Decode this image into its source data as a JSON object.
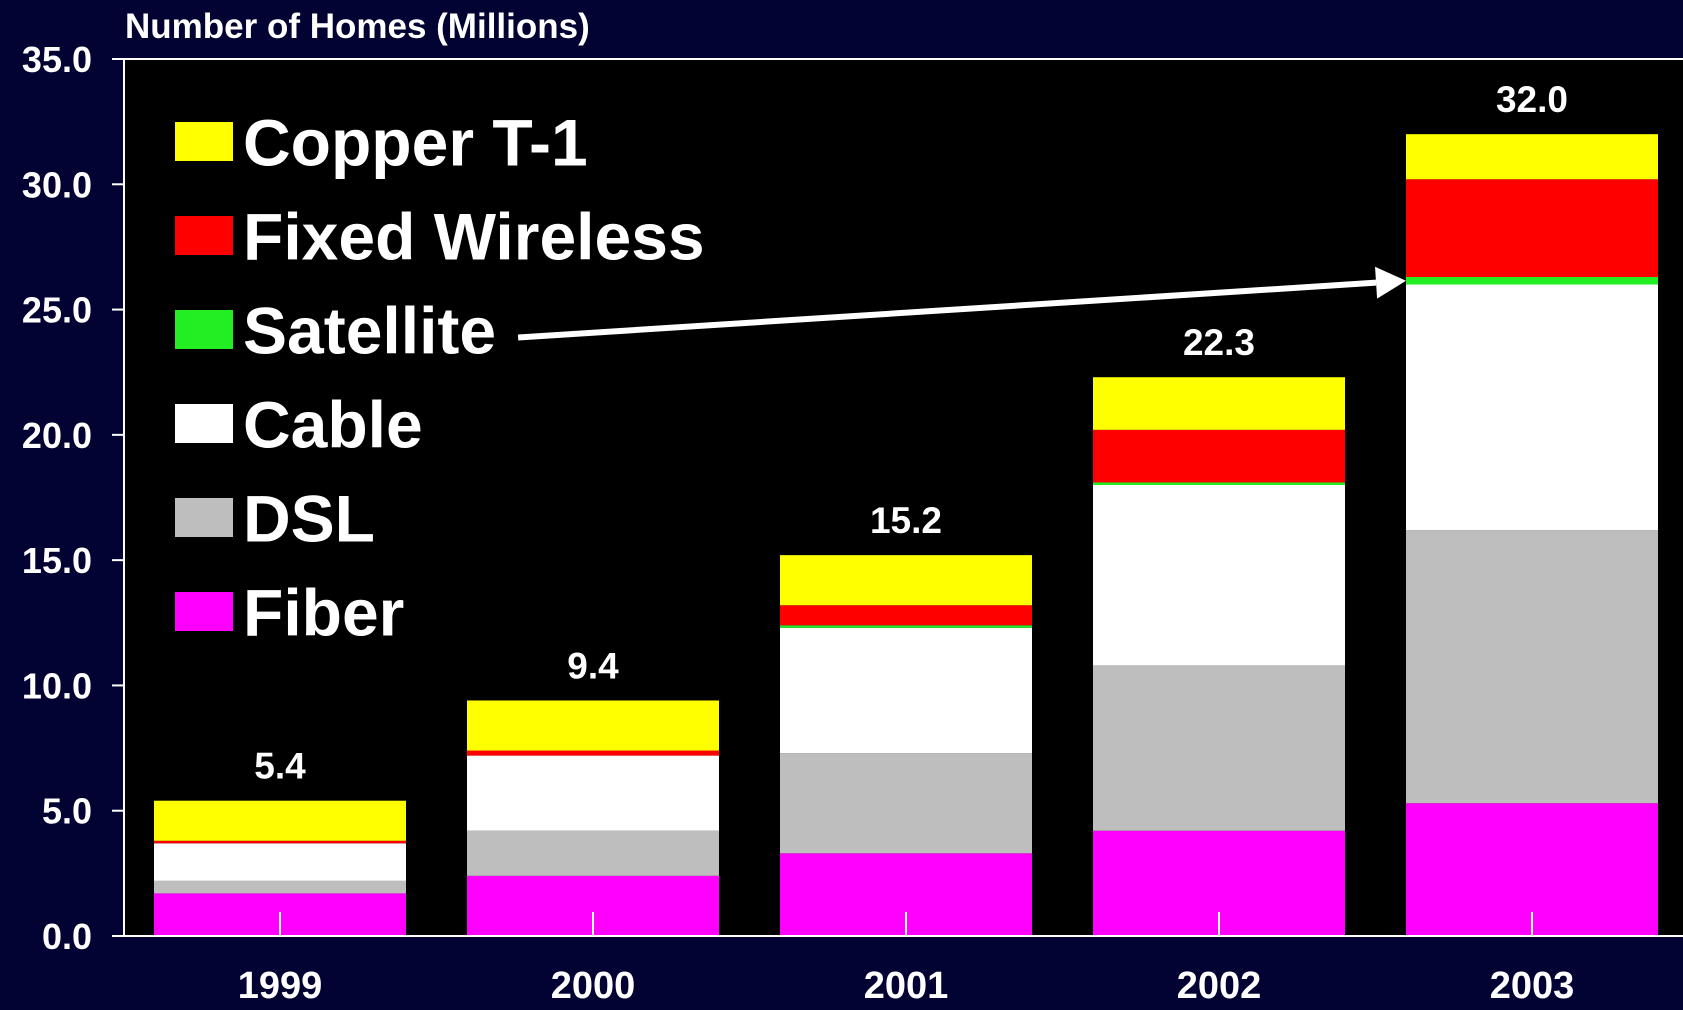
{
  "chart_data": {
    "type": "bar",
    "stacked": true,
    "title": "Number of Homes (Millions)",
    "xlabel": "",
    "ylabel": "",
    "ylim": [
      0,
      35
    ],
    "yticks": [
      0,
      5,
      10,
      15,
      20,
      25,
      30,
      35
    ],
    "ytick_labels": [
      "0.0",
      "5.0",
      "10.0",
      "15.0",
      "20.0",
      "25.0",
      "30.0",
      "35.0"
    ],
    "grid": false,
    "legend_position": "top-left",
    "categories": [
      "1999",
      "2000",
      "2001",
      "2002",
      "2003"
    ],
    "totals": [
      5.4,
      9.4,
      15.2,
      22.3,
      32.0
    ],
    "total_labels": [
      "5.4",
      "9.4",
      "15.2",
      "22.3",
      "32.0"
    ],
    "series": [
      {
        "name": "Fiber",
        "color": "#FF00FF",
        "values": [
          1.7,
          2.4,
          3.3,
          4.2,
          5.3
        ]
      },
      {
        "name": "DSL",
        "color": "#BEBEBE",
        "values": [
          0.5,
          1.8,
          4.0,
          6.6,
          10.9
        ]
      },
      {
        "name": "Cable",
        "color": "#FFFFFF",
        "values": [
          1.5,
          3.0,
          5.0,
          7.2,
          9.8
        ]
      },
      {
        "name": "Satellite",
        "color": "#22EE22",
        "values": [
          0.0,
          0.0,
          0.1,
          0.1,
          0.3
        ]
      },
      {
        "name": "Fixed Wireless",
        "color": "#FF0000",
        "values": [
          0.1,
          0.2,
          0.8,
          2.1,
          3.9
        ]
      },
      {
        "name": "Copper T-1",
        "color": "#FFFF00",
        "values": [
          1.6,
          2.0,
          2.0,
          2.1,
          1.8
        ]
      }
    ],
    "legend_order": [
      "Copper T-1",
      "Fixed Wireless",
      "Satellite",
      "Cable",
      "DSL",
      "Fiber"
    ],
    "annotations": [
      {
        "type": "arrow",
        "from": "legend:Satellite",
        "to_category": "2003",
        "to_series": "Satellite"
      }
    ],
    "colors": {
      "background": "#020233",
      "plot_background": "#000000",
      "text": "#FFFFFF",
      "axis": "#FFFFFF"
    }
  }
}
